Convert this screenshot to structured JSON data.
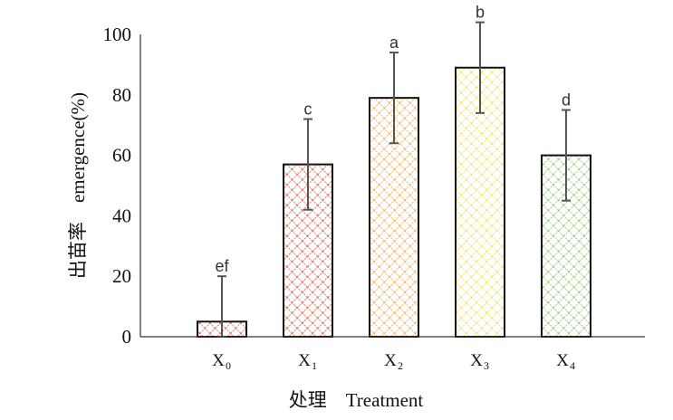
{
  "chart_data": {
    "type": "bar",
    "categories": [
      {
        "main": "X",
        "sub": "0"
      },
      {
        "main": "X",
        "sub": "1"
      },
      {
        "main": "X",
        "sub": "2"
      },
      {
        "main": "X",
        "sub": "3"
      },
      {
        "main": "X",
        "sub": "4"
      }
    ],
    "values": [
      5,
      57,
      79,
      89,
      60
    ],
    "error_upper": [
      15,
      15,
      15,
      15,
      15
    ],
    "error_lower": [
      15,
      15,
      15,
      15,
      15
    ],
    "significance": [
      "ef",
      "c",
      "a",
      "b",
      "d"
    ],
    "colors": [
      "#e05a4e",
      "#e0593f",
      "#f2a64a",
      "#ecde56",
      "#92c16b"
    ],
    "xlabel": "处理　Treatment",
    "ylabel": "出苗率　emergence(%)",
    "ylim": [
      0,
      100
    ],
    "yticks": [
      "0",
      "20",
      "40",
      "60",
      "80",
      "100"
    ],
    "grid": false,
    "legend": "none"
  }
}
